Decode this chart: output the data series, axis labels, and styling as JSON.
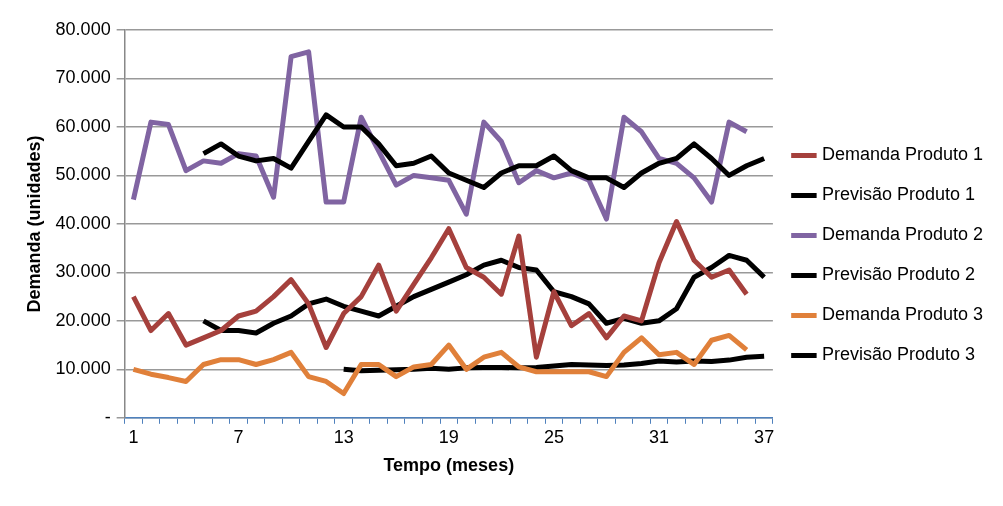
{
  "chart_data": {
    "type": "line",
    "xlabel": "Tempo (meses)",
    "ylabel": "Demanda (unidades)",
    "categories": [
      "1",
      null,
      null,
      null,
      null,
      null,
      "7",
      null,
      null,
      null,
      null,
      null,
      "13",
      null,
      null,
      null,
      null,
      null,
      "19",
      null,
      null,
      null,
      null,
      null,
      "25",
      null,
      null,
      null,
      null,
      null,
      "31",
      null,
      null,
      null,
      null,
      null,
      "37"
    ],
    "ylim": [
      0,
      80000
    ],
    "yticks": [
      {
        "value": 0,
        "label": "-"
      },
      {
        "value": 10000,
        "label": "10.000"
      },
      {
        "value": 20000,
        "label": "20.000"
      },
      {
        "value": 30000,
        "label": "30.000"
      },
      {
        "value": 40000,
        "label": "40.000"
      },
      {
        "value": 50000,
        "label": "50.000"
      },
      {
        "value": 60000,
        "label": "60.000"
      },
      {
        "value": 70000,
        "label": "70.000"
      },
      {
        "value": 80000,
        "label": "80.000"
      }
    ],
    "grid": "y",
    "legend": "right",
    "series": [
      {
        "name": "Demanda Produto 1",
        "color": "#a5403c",
        "values": [
          25000,
          18000,
          21500,
          15000,
          16500,
          18000,
          21000,
          22000,
          25000,
          28500,
          23500,
          14500,
          21500,
          25000,
          31500,
          22000,
          27500,
          33000,
          39000,
          31000,
          29000,
          25500,
          37500,
          12500,
          26000,
          19000,
          21500,
          16500,
          21000,
          20000,
          32000,
          40500,
          32500,
          29000,
          30500,
          25500,
          null
        ]
      },
      {
        "name": "Previsão Produto 1",
        "color": "#000000",
        "values": [
          null,
          null,
          null,
          null,
          54500,
          56500,
          54000,
          53000,
          53500,
          51500,
          57000,
          62500,
          60000,
          60000,
          56500,
          52000,
          52500,
          54000,
          50500,
          49000,
          47500,
          50500,
          52000,
          52000,
          54000,
          51000,
          49500,
          49500,
          47500,
          50500,
          52500,
          53500,
          56500,
          53500,
          50000,
          52000,
          53500
        ]
      },
      {
        "name": "Demanda Produto 2",
        "color": "#8064a2",
        "values": [
          45000,
          61000,
          60500,
          51000,
          53000,
          52500,
          54500,
          54000,
          45500,
          74500,
          75500,
          44500,
          44500,
          62000,
          55000,
          48000,
          50000,
          49500,
          49000,
          42000,
          61000,
          57000,
          48500,
          51000,
          49500,
          50500,
          49000,
          41000,
          62000,
          59000,
          53500,
          52500,
          49500,
          44500,
          61000,
          59000,
          null
        ]
      },
      {
        "name": "Previsão Produto 2",
        "color": "#000000",
        "values": [
          null,
          null,
          null,
          null,
          20000,
          18000,
          18000,
          17500,
          19500,
          21000,
          23500,
          24500,
          23000,
          22000,
          21000,
          23000,
          25000,
          26500,
          28000,
          29500,
          31500,
          32500,
          31000,
          30500,
          26000,
          25000,
          23500,
          19500,
          20500,
          19500,
          20000,
          22500,
          29000,
          31000,
          33500,
          32500,
          29000
        ]
      },
      {
        "name": "Demanda Produto 3",
        "color": "#e0803a",
        "values": [
          10000,
          9000,
          8300,
          7500,
          11000,
          12000,
          12000,
          11000,
          12000,
          13500,
          8500,
          7500,
          5000,
          11000,
          11000,
          8500,
          10500,
          11000,
          15000,
          10000,
          12500,
          13500,
          10500,
          9500,
          9500,
          9500,
          9500,
          8500,
          13500,
          16500,
          13000,
          13500,
          11000,
          16000,
          17000,
          14000,
          null
        ]
      },
      {
        "name": "Previsão Produto 3",
        "color": "#000000",
        "values": [
          null,
          null,
          null,
          null,
          null,
          null,
          null,
          null,
          null,
          null,
          null,
          null,
          10000,
          9700,
          9800,
          9900,
          10000,
          10200,
          10000,
          10300,
          10400,
          10400,
          10300,
          10400,
          10700,
          11000,
          10900,
          10800,
          10900,
          11200,
          11700,
          11500,
          11700,
          11600,
          11900,
          12500,
          12700
        ]
      }
    ]
  }
}
